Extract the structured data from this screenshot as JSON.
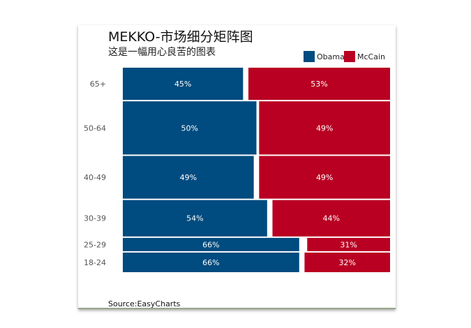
{
  "chart_data": {
    "type": "bar",
    "title": "MEKKO-市场细分矩阵图",
    "subtitle": "这是一幅用心良苦的图表",
    "source": "Source:EasyCharts",
    "categories": [
      "65+",
      "50-64",
      "40-49",
      "30-39",
      "25-29",
      "18-24"
    ],
    "row_shares": [
      0.16,
      0.26,
      0.21,
      0.18,
      0.07,
      0.1
    ],
    "series": [
      {
        "name": "Obama",
        "color": "#004b7f",
        "values": [
          45,
          50,
          49,
          54,
          66,
          66
        ],
        "labels": [
          "45%",
          "50%",
          "49%",
          "54%",
          "66%",
          "66%"
        ]
      },
      {
        "name": "McCain",
        "color": "#b90022",
        "values": [
          53,
          49,
          49,
          44,
          31,
          32
        ],
        "labels": [
          "53%",
          "49%",
          "49%",
          "44%",
          "31%",
          "32%"
        ]
      }
    ],
    "legend_position": "top-right",
    "grid": false
  }
}
